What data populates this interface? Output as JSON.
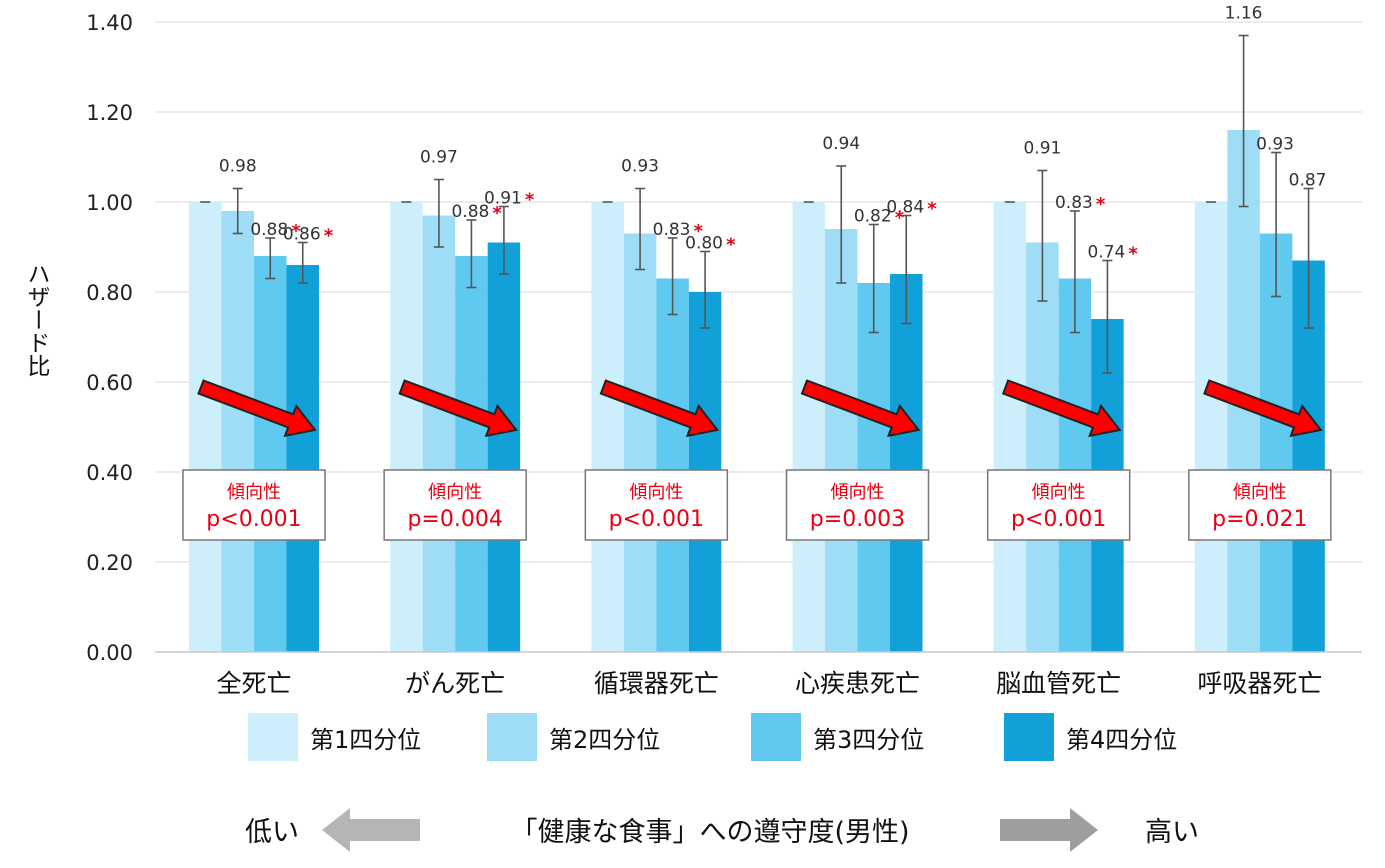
{
  "chart_data": {
    "type": "bar",
    "ylabel": "ハザード比",
    "ylim": [
      0,
      1.4
    ],
    "yticks": [
      "0.00",
      "0.20",
      "0.40",
      "0.60",
      "0.80",
      "1.00",
      "1.20",
      "1.40"
    ],
    "grid": true,
    "legend_position": "bottom",
    "categories": [
      "全死亡",
      "がん死亡",
      "循環器死亡",
      "心疾患死亡",
      "脳血管死亡",
      "呼吸器死亡"
    ],
    "series": [
      {
        "name": "第1四分位",
        "color": "#cdeefb",
        "values": [
          1.0,
          1.0,
          1.0,
          1.0,
          1.0,
          1.0
        ],
        "ci_low": [
          1.0,
          1.0,
          1.0,
          1.0,
          1.0,
          1.0
        ],
        "ci_high": [
          1.0,
          1.0,
          1.0,
          1.0,
          1.0,
          1.0
        ],
        "labels": [
          "",
          "",
          "",
          "",
          "",
          ""
        ],
        "significant": [
          false,
          false,
          false,
          false,
          false,
          false
        ]
      },
      {
        "name": "第2四分位",
        "color": "#9fdcf6",
        "values": [
          0.98,
          0.97,
          0.93,
          0.94,
          0.91,
          1.16
        ],
        "ci_low": [
          0.93,
          0.9,
          0.85,
          0.82,
          0.78,
          0.99
        ],
        "ci_high": [
          1.03,
          1.05,
          1.03,
          1.08,
          1.07,
          1.37
        ],
        "labels": [
          "0.98",
          "0.97",
          "0.93",
          "0.94",
          "0.91",
          "1.16"
        ],
        "significant": [
          false,
          false,
          false,
          false,
          false,
          false
        ]
      },
      {
        "name": "第3四分位",
        "color": "#60c9f0",
        "values": [
          0.88,
          0.88,
          0.83,
          0.82,
          0.83,
          0.93
        ],
        "ci_low": [
          0.83,
          0.81,
          0.75,
          0.71,
          0.71,
          0.79
        ],
        "ci_high": [
          0.92,
          0.96,
          0.92,
          0.95,
          0.98,
          1.11
        ],
        "labels": [
          "0.88",
          "0.88",
          "0.83",
          "0.82",
          "0.83",
          "0.93"
        ],
        "significant": [
          true,
          true,
          true,
          true,
          true,
          false
        ]
      },
      {
        "name": "第4四分位",
        "color": "#12a0d8",
        "values": [
          0.86,
          0.91,
          0.8,
          0.84,
          0.74,
          0.87
        ],
        "ci_low": [
          0.82,
          0.84,
          0.72,
          0.73,
          0.62,
          0.72
        ],
        "ci_high": [
          0.91,
          0.99,
          0.89,
          0.97,
          0.87,
          1.03
        ],
        "labels": [
          "0.86",
          "0.91",
          "0.80",
          "0.84",
          "0.74",
          "0.87"
        ],
        "significant": [
          true,
          true,
          true,
          true,
          true,
          false
        ]
      }
    ],
    "significance_mark": "*",
    "trend_label": "傾向性",
    "trend_p": [
      "p<0.001",
      "p=0.004",
      "p<0.001",
      "p=0.003",
      "p<0.001",
      "p=0.021"
    ],
    "footer": {
      "low": "低い",
      "center": "「健康な食事」への遵守度(男性)",
      "high": "高い"
    },
    "colors": {
      "arrow": "#ff0000",
      "footer_arrow": "#b5b5b5",
      "grid": "#d9d9d9"
    }
  }
}
